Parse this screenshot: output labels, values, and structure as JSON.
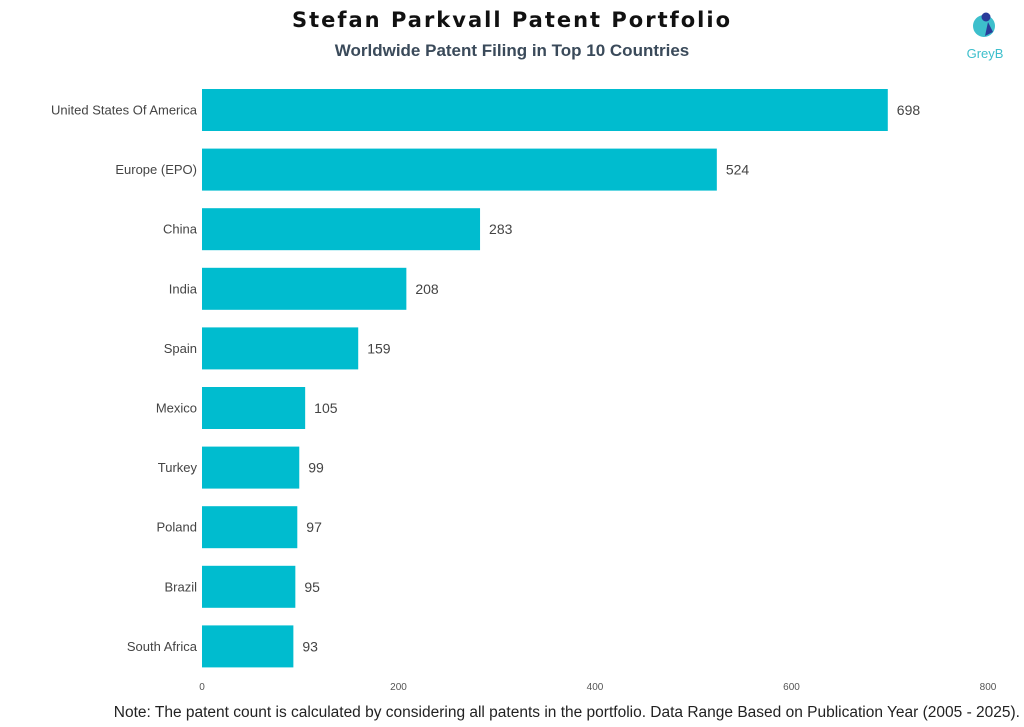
{
  "chart_data": {
    "type": "bar",
    "orientation": "horizontal",
    "title": "Stefan Parkvall Patent Portfolio",
    "subtitle": "Worldwide Patent Filing in Top 10 Countries",
    "categories": [
      "United States Of America",
      "Europe (EPO)",
      "China",
      "India",
      "Spain",
      "Mexico",
      "Turkey",
      "Poland",
      "Brazil",
      "South Africa"
    ],
    "values": [
      698,
      524,
      283,
      208,
      159,
      105,
      99,
      97,
      95,
      93
    ],
    "xlim": [
      0,
      800
    ],
    "xticks": [
      "0",
      "200",
      "400",
      "600",
      "800"
    ],
    "xlabel": "",
    "ylabel": "",
    "grid": false,
    "bar_color": "#00bccf"
  },
  "note": "Note: The patent count is calculated by considering all patents in the portfolio. Data Range Based on Publication Year (2005 - 2025).",
  "logo": {
    "text": "GreyB",
    "colors": [
      "#3dbfcc",
      "#2a3c9a"
    ]
  }
}
